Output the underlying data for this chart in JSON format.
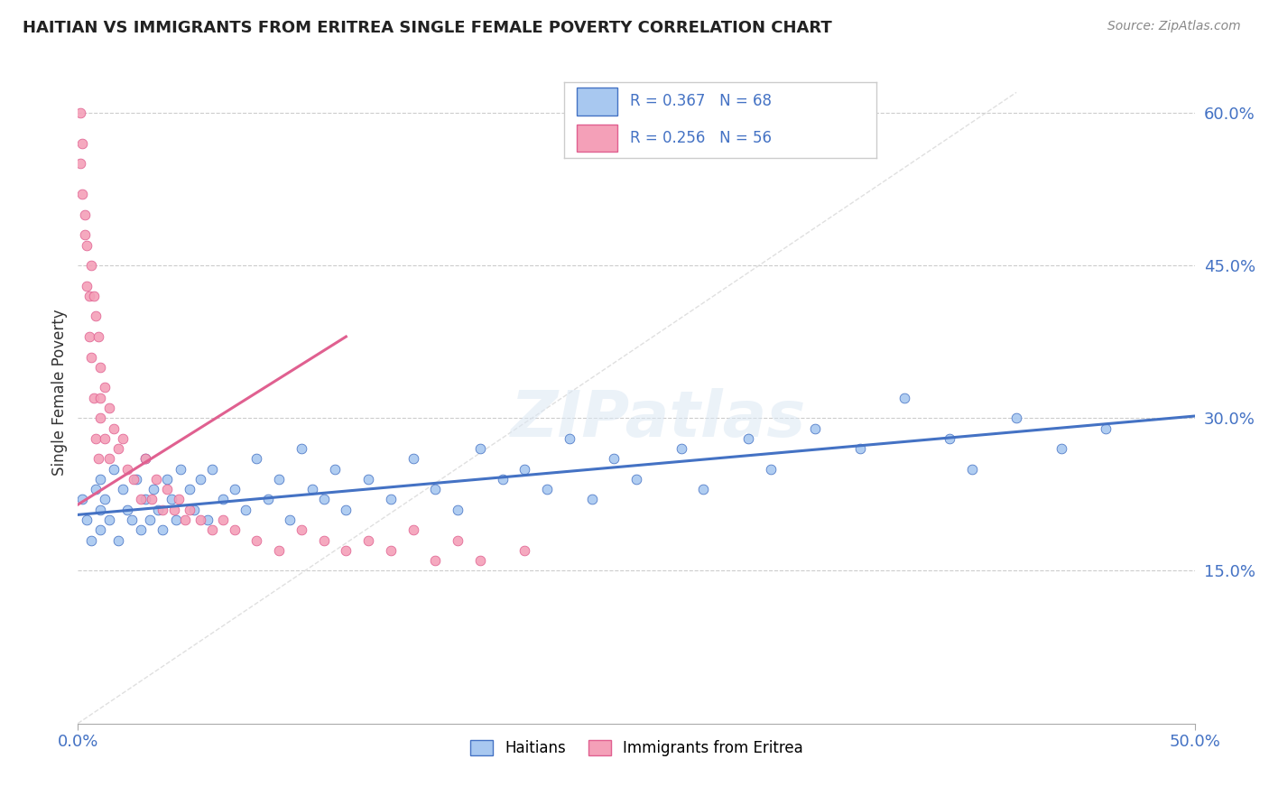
{
  "title": "HAITIAN VS IMMIGRANTS FROM ERITREA SINGLE FEMALE POVERTY CORRELATION CHART",
  "source": "Source: ZipAtlas.com",
  "ylabel": "Single Female Poverty",
  "xmin": 0.0,
  "xmax": 0.5,
  "ymin": 0.0,
  "ymax": 0.65,
  "ytick_vals": [
    0.0,
    0.15,
    0.3,
    0.45,
    0.6
  ],
  "ytick_labels": [
    "",
    "15.0%",
    "30.0%",
    "45.0%",
    "60.0%"
  ],
  "xtick_vals": [
    0.0,
    0.5
  ],
  "xtick_labels": [
    "0.0%",
    "50.0%"
  ],
  "legend_labels": [
    "Haitians",
    "Immigrants from Eritrea"
  ],
  "legend_R1": "R = 0.367",
  "legend_N1": "N = 68",
  "legend_R2": "R = 0.256",
  "legend_N2": "N = 56",
  "color_haiti": "#a8c8f0",
  "color_eritrea": "#f4a0b8",
  "color_haiti_line": "#4472c4",
  "color_eritrea_line": "#e06090",
  "color_text_blue": "#4472c4",
  "watermark": "ZIPatlas",
  "haiti_x": [
    0.002,
    0.004,
    0.006,
    0.008,
    0.01,
    0.01,
    0.01,
    0.012,
    0.014,
    0.016,
    0.018,
    0.02,
    0.022,
    0.024,
    0.026,
    0.028,
    0.03,
    0.03,
    0.032,
    0.034,
    0.036,
    0.038,
    0.04,
    0.042,
    0.044,
    0.046,
    0.05,
    0.052,
    0.055,
    0.058,
    0.06,
    0.065,
    0.07,
    0.075,
    0.08,
    0.085,
    0.09,
    0.095,
    0.1,
    0.105,
    0.11,
    0.115,
    0.12,
    0.13,
    0.14,
    0.15,
    0.16,
    0.17,
    0.18,
    0.19,
    0.2,
    0.21,
    0.22,
    0.23,
    0.24,
    0.25,
    0.27,
    0.28,
    0.3,
    0.31,
    0.33,
    0.35,
    0.37,
    0.39,
    0.4,
    0.42,
    0.44,
    0.46
  ],
  "haiti_y": [
    0.22,
    0.2,
    0.18,
    0.23,
    0.21,
    0.24,
    0.19,
    0.22,
    0.2,
    0.25,
    0.18,
    0.23,
    0.21,
    0.2,
    0.24,
    0.19,
    0.22,
    0.26,
    0.2,
    0.23,
    0.21,
    0.19,
    0.24,
    0.22,
    0.2,
    0.25,
    0.23,
    0.21,
    0.24,
    0.2,
    0.25,
    0.22,
    0.23,
    0.21,
    0.26,
    0.22,
    0.24,
    0.2,
    0.27,
    0.23,
    0.22,
    0.25,
    0.21,
    0.24,
    0.22,
    0.26,
    0.23,
    0.21,
    0.27,
    0.24,
    0.25,
    0.23,
    0.28,
    0.22,
    0.26,
    0.24,
    0.27,
    0.23,
    0.28,
    0.25,
    0.29,
    0.27,
    0.32,
    0.28,
    0.25,
    0.3,
    0.27,
    0.29
  ],
  "eritrea_x": [
    0.001,
    0.001,
    0.002,
    0.002,
    0.003,
    0.003,
    0.004,
    0.004,
    0.005,
    0.005,
    0.006,
    0.006,
    0.007,
    0.007,
    0.008,
    0.008,
    0.009,
    0.009,
    0.01,
    0.01,
    0.01,
    0.012,
    0.012,
    0.014,
    0.014,
    0.016,
    0.018,
    0.02,
    0.022,
    0.025,
    0.028,
    0.03,
    0.033,
    0.035,
    0.038,
    0.04,
    0.043,
    0.045,
    0.048,
    0.05,
    0.055,
    0.06,
    0.065,
    0.07,
    0.08,
    0.09,
    0.1,
    0.11,
    0.12,
    0.13,
    0.14,
    0.15,
    0.16,
    0.17,
    0.18,
    0.2
  ],
  "eritrea_y": [
    0.6,
    0.55,
    0.57,
    0.52,
    0.5,
    0.48,
    0.47,
    0.43,
    0.42,
    0.38,
    0.45,
    0.36,
    0.42,
    0.32,
    0.4,
    0.28,
    0.38,
    0.26,
    0.35,
    0.32,
    0.3,
    0.33,
    0.28,
    0.31,
    0.26,
    0.29,
    0.27,
    0.28,
    0.25,
    0.24,
    0.22,
    0.26,
    0.22,
    0.24,
    0.21,
    0.23,
    0.21,
    0.22,
    0.2,
    0.21,
    0.2,
    0.19,
    0.2,
    0.19,
    0.18,
    0.17,
    0.19,
    0.18,
    0.17,
    0.18,
    0.17,
    0.19,
    0.16,
    0.18,
    0.16,
    0.17
  ],
  "haiti_line_x": [
    0.0,
    0.5
  ],
  "haiti_line_y": [
    0.205,
    0.302
  ],
  "eritrea_line_x": [
    0.0,
    0.12
  ],
  "eritrea_line_y": [
    0.215,
    0.38
  ]
}
